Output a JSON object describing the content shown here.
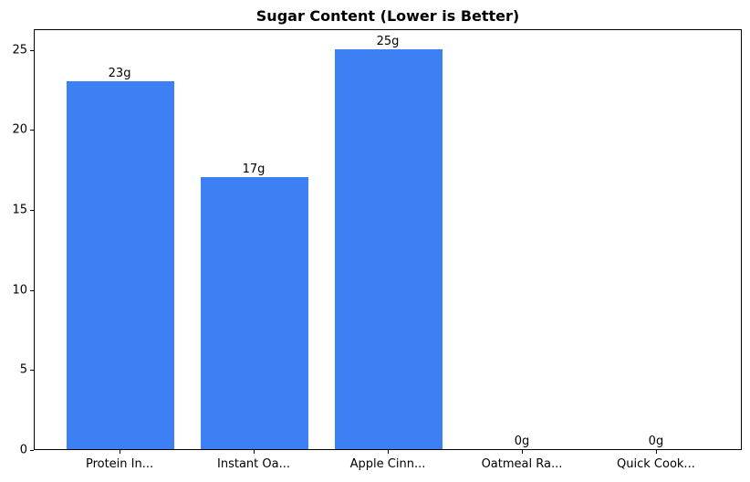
{
  "chart_data": {
    "type": "bar",
    "title": "Sugar Content (Lower is Better)",
    "categories": [
      "Protein In...",
      "Instant Oa...",
      "Apple Cinn...",
      "Oatmeal Ra...",
      "Quick Cook..."
    ],
    "values": [
      23,
      17,
      25,
      0,
      0
    ],
    "value_labels": [
      "23g",
      "17g",
      "25g",
      "0g",
      "0g"
    ],
    "yticks": [
      0,
      5,
      10,
      15,
      20,
      25
    ],
    "ylim": [
      0,
      26.3
    ],
    "xlim": [
      -0.64,
      4.64
    ],
    "bar_unit_width": 0.8,
    "bar_color": "#3c80f4",
    "text_color": "#000000",
    "xlabel": "",
    "ylabel": "",
    "grid": false,
    "legend": false
  }
}
